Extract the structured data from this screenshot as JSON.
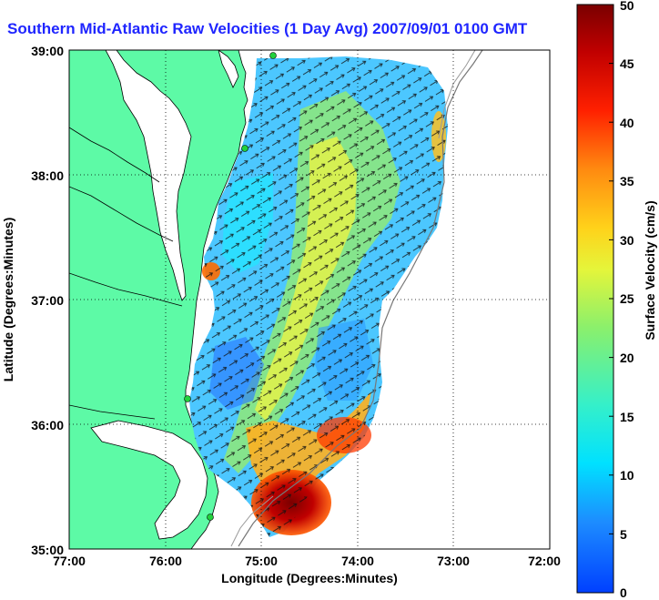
{
  "title": "Southern Mid-Atlantic Raw Velocities (1 Day Avg) 2007/09/01 0100 GMT",
  "axes": {
    "xlabel": "Longitude (Degrees:Minutes)",
    "ylabel": "Latitude (Degrees:Minutes)",
    "xticks": [
      "77:00",
      "76:00",
      "75:00",
      "74:00",
      "73:00",
      "72:00"
    ],
    "yticks": [
      "39:00",
      "38:00",
      "37:00",
      "36:00",
      "35:00"
    ]
  },
  "colorbar": {
    "label": "Surface Velocity (cm/s)",
    "ticks": [
      "50",
      "45",
      "40",
      "35",
      "30",
      "25",
      "20",
      "15",
      "10",
      "5",
      "0"
    ],
    "range": [
      0,
      50
    ]
  },
  "colors": {
    "land": "#5dfaa6",
    "coastline": "#000000",
    "title": "#1f25ff",
    "station": "#22d13c"
  }
}
